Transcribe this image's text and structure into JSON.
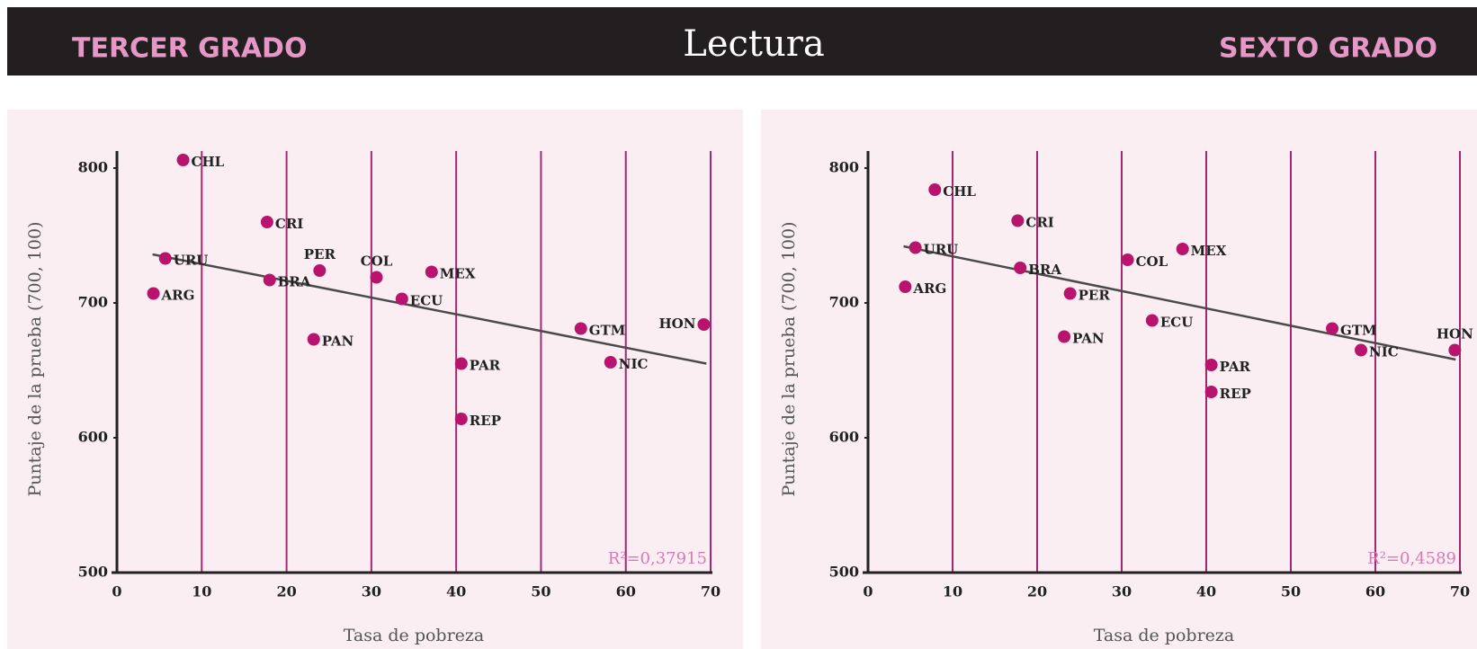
{
  "header": {
    "left": "TERCER GRADO",
    "title": "Lectura",
    "right": "SEXTO GRADO"
  },
  "chart_data": [
    {
      "type": "scatter",
      "xlabel": "Tasa de pobreza",
      "ylabel": "Puntaje de la prueba (700, 100)",
      "labels": [
        "CHL",
        "CRI",
        "URU",
        "ARG",
        "BRA",
        "PER",
        "COL",
        "MEX",
        "ECU",
        "PAN",
        "GTM",
        "HON",
        "PAR",
        "NIC",
        "REP"
      ],
      "x": [
        7.8,
        17.7,
        5.7,
        4.3,
        18,
        23.9,
        30.6,
        37.1,
        33.6,
        23.2,
        54.7,
        69.2,
        40.6,
        58.2,
        40.6
      ],
      "values": [
        806,
        760,
        733,
        707,
        717,
        724,
        719,
        723,
        703,
        673,
        681,
        684,
        655,
        656,
        614
      ],
      "color": "#b8146e",
      "trendline": {
        "x": [
          4.2,
          69.5
        ],
        "y": [
          736,
          655
        ]
      },
      "r2_label": "R²=0,37915",
      "xlim": [
        0,
        70
      ],
      "ylim": [
        500,
        810
      ],
      "xticks": [
        0,
        10,
        20,
        30,
        40,
        50,
        60,
        70
      ],
      "yticks": [
        500,
        600,
        700,
        800
      ],
      "grid": true
    },
    {
      "type": "scatter",
      "xlabel": "Tasa de pobreza",
      "ylabel": "Puntaje de la prueba (700, 100)",
      "labels": [
        "CHL",
        "CRI",
        "URU",
        "ARG",
        "BRA",
        "PER",
        "COL",
        "MEX",
        "ECU",
        "PAN",
        "GTM",
        "HON",
        "PAR",
        "NIC",
        "REP"
      ],
      "x": [
        7.9,
        17.7,
        5.6,
        4.4,
        18,
        23.9,
        30.7,
        37.2,
        33.6,
        23.2,
        54.9,
        69.4,
        40.6,
        58.3,
        40.6
      ],
      "values": [
        784,
        761,
        741,
        712,
        726,
        707,
        732,
        740,
        687,
        675,
        681,
        665,
        654,
        665,
        634
      ],
      "color": "#b8146e",
      "trendline": {
        "x": [
          4.2,
          69.5
        ],
        "y": [
          742,
          658
        ]
      },
      "r2_label": "R²=0,4589",
      "xlim": [
        0,
        70
      ],
      "ylim": [
        500,
        810
      ],
      "xticks": [
        0,
        10,
        20,
        30,
        40,
        50,
        60,
        70
      ],
      "yticks": [
        500,
        600,
        700,
        800
      ],
      "grid": true
    }
  ]
}
